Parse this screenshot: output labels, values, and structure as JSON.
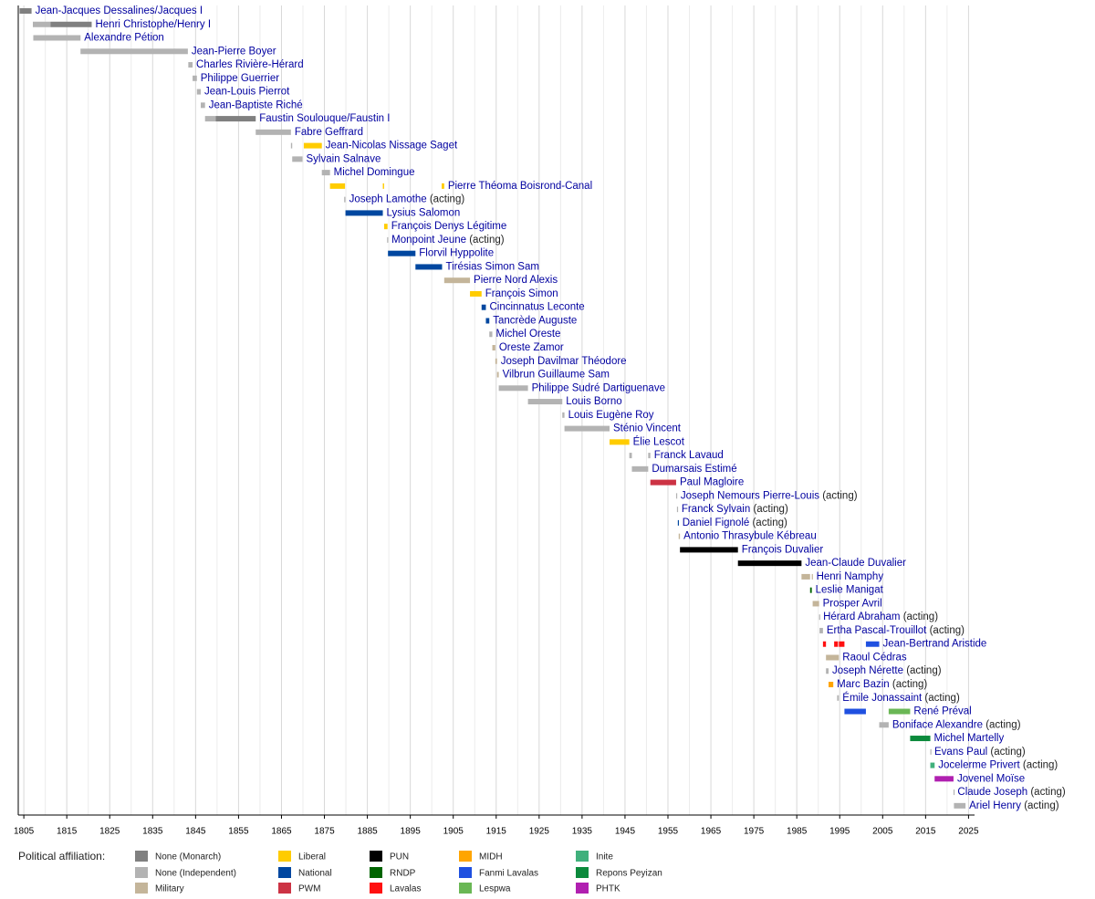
{
  "chart_data": {
    "type": "timeline",
    "xlim": [
      1803.7,
      2026.4
    ],
    "xticks": [
      1805,
      1815,
      1825,
      1835,
      1845,
      1855,
      1865,
      1875,
      1885,
      1895,
      1905,
      1915,
      1925,
      1935,
      1945,
      1955,
      1965,
      1975,
      1985,
      1995,
      2005,
      2015,
      2025
    ],
    "minor_xticks": [
      1810,
      1820,
      1830,
      1840,
      1850,
      1860,
      1870,
      1880,
      1890,
      1900,
      1910,
      1920,
      1930,
      1940,
      1950,
      1960,
      1970,
      1980,
      1990,
      2000,
      2010,
      2020
    ],
    "grid": true,
    "legend_title": "Political affiliation:",
    "parties": [
      {
        "name": "None (Monarch)",
        "color": "#808080"
      },
      {
        "name": "None (Independent)",
        "color": "#b3b3b3"
      },
      {
        "name": "Military",
        "color": "#c4b59a"
      },
      {
        "name": "Liberal",
        "color": "#ffcc00"
      },
      {
        "name": "National",
        "color": "#0047a0"
      },
      {
        "name": "PWM",
        "color": "#cc3344"
      },
      {
        "name": "PUN",
        "color": "#000000"
      },
      {
        "name": "RNDP",
        "color": "#006400"
      },
      {
        "name": "Lavalas",
        "color": "#ff1010"
      },
      {
        "name": "MIDH",
        "color": "#ffa500"
      },
      {
        "name": "Fanmi Lavalas",
        "color": "#1f50e0"
      },
      {
        "name": "Lespwa",
        "color": "#6ab755"
      },
      {
        "name": "Inite",
        "color": "#40b07c"
      },
      {
        "name": "Repons Peyizan",
        "color": "#0c8a3c"
      },
      {
        "name": "PHTK",
        "color": "#b020b0"
      }
    ],
    "rows": [
      {
        "name": "Jean-Jacques Dessalines/Jacques I",
        "segments": [
          [
            1804.0,
            1806.8,
            "None (Monarch)"
          ]
        ]
      },
      {
        "name": "Henri Christophe/Henry I",
        "segments": [
          [
            1807.1,
            1811.2,
            "None (Independent)"
          ],
          [
            1811.2,
            1820.8,
            "None (Monarch)"
          ]
        ]
      },
      {
        "name": "Alexandre Pétion",
        "segments": [
          [
            1807.2,
            1818.2,
            "None (Independent)"
          ]
        ]
      },
      {
        "name": "Jean-Pierre Boyer",
        "segments": [
          [
            1818.2,
            1843.2,
            "None (Independent)"
          ]
        ]
      },
      {
        "name": "Charles Rivière-Hérard",
        "segments": [
          [
            1843.3,
            1844.3,
            "None (Independent)"
          ]
        ]
      },
      {
        "name": "Philippe Guerrier",
        "segments": [
          [
            1844.3,
            1845.3,
            "None (Independent)"
          ]
        ]
      },
      {
        "name": "Jean-Louis Pierrot",
        "segments": [
          [
            1845.3,
            1846.2,
            "None (Independent)"
          ]
        ]
      },
      {
        "name": "Jean-Baptiste Riché",
        "segments": [
          [
            1846.2,
            1847.2,
            "None (Independent)"
          ]
        ]
      },
      {
        "name": "Faustin Soulouque/Faustin I",
        "segments": [
          [
            1847.2,
            1849.7,
            "None (Independent)"
          ],
          [
            1849.7,
            1859.0,
            "None (Monarch)"
          ]
        ]
      },
      {
        "name": "Fabre Geffrard",
        "segments": [
          [
            1859.0,
            1867.2,
            "None (Independent)"
          ]
        ]
      },
      {
        "name": "Jean-Nicolas Nissage Saget",
        "segments": [
          [
            1867.2,
            1867.5,
            "None (Independent)"
          ],
          [
            1870.2,
            1874.4,
            "Liberal"
          ]
        ]
      },
      {
        "name": "Sylvain Salnave",
        "segments": [
          [
            1867.5,
            1869.9,
            "None (Independent)"
          ]
        ]
      },
      {
        "name": "Michel Domingue",
        "segments": [
          [
            1874.4,
            1876.3,
            "None (Independent)"
          ]
        ]
      },
      {
        "name": "Pierre Théoma Boisrond-Canal",
        "segments": [
          [
            1876.3,
            1879.8,
            "Liberal"
          ],
          [
            1888.6,
            1888.9,
            "Liberal"
          ],
          [
            1902.3,
            1902.9,
            "Liberal"
          ]
        ]
      },
      {
        "name": "Joseph Lamothe",
        "note": "(acting)",
        "segments": [
          [
            1879.6,
            1879.9,
            "None (Independent)"
          ]
        ]
      },
      {
        "name": "Lysius Salomon",
        "segments": [
          [
            1879.9,
            1888.6,
            "National"
          ]
        ]
      },
      {
        "name": "François Denys Légitime",
        "segments": [
          [
            1888.9,
            1889.7,
            "Liberal"
          ]
        ]
      },
      {
        "name": "Monpoint Jeune",
        "note": "(acting)",
        "segments": [
          [
            1889.6,
            1889.8,
            "None (Independent)"
          ]
        ]
      },
      {
        "name": "Florvil Hyppolite",
        "segments": [
          [
            1889.8,
            1896.2,
            "National"
          ]
        ]
      },
      {
        "name": "Tirésias Simon Sam",
        "segments": [
          [
            1896.2,
            1902.4,
            "National"
          ]
        ]
      },
      {
        "name": "Pierre Nord Alexis",
        "segments": [
          [
            1902.9,
            1908.9,
            "Military"
          ]
        ]
      },
      {
        "name": "François Simon",
        "segments": [
          [
            1908.9,
            1911.6,
            "Liberal"
          ]
        ]
      },
      {
        "name": "Cincinnatus Leconte",
        "segments": [
          [
            1911.6,
            1912.6,
            "National"
          ]
        ]
      },
      {
        "name": "Tancrède Auguste",
        "segments": [
          [
            1912.6,
            1913.4,
            "National"
          ]
        ]
      },
      {
        "name": "Michel Oreste",
        "segments": [
          [
            1913.4,
            1914.1,
            "None (Independent)"
          ]
        ]
      },
      {
        "name": "Oreste Zamor",
        "segments": [
          [
            1914.1,
            1914.8,
            "Military"
          ]
        ]
      },
      {
        "name": "Joseph Davilmar Théodore",
        "segments": [
          [
            1914.8,
            1915.2,
            "Military"
          ]
        ]
      },
      {
        "name": "Vilbrun Guillaume Sam",
        "segments": [
          [
            1915.2,
            1915.6,
            "Military"
          ]
        ]
      },
      {
        "name": "Philippe Sudré Dartiguenave",
        "segments": [
          [
            1915.6,
            1922.4,
            "None (Independent)"
          ]
        ]
      },
      {
        "name": "Louis Borno",
        "segments": [
          [
            1922.4,
            1930.4,
            "None (Independent)"
          ]
        ]
      },
      {
        "name": "Louis Eugène Roy",
        "segments": [
          [
            1930.4,
            1930.9,
            "None (Independent)"
          ]
        ]
      },
      {
        "name": "Sténio Vincent",
        "segments": [
          [
            1930.9,
            1941.4,
            "None (Independent)"
          ]
        ]
      },
      {
        "name": "Élie Lescot",
        "segments": [
          [
            1941.4,
            1946.0,
            "Liberal"
          ]
        ]
      },
      {
        "name": "Franck Lavaud",
        "segments": [
          [
            1946.0,
            1946.6,
            "None (Independent)"
          ],
          [
            1950.4,
            1950.9,
            "None (Independent)"
          ]
        ]
      },
      {
        "name": "Dumarsais Estimé",
        "segments": [
          [
            1946.6,
            1950.4,
            "None (Independent)"
          ]
        ]
      },
      {
        "name": "Paul Magloire",
        "segments": [
          [
            1950.9,
            1956.9,
            "PWM"
          ]
        ]
      },
      {
        "name": "Joseph Nemours Pierre-Louis",
        "note": "(acting)",
        "segments": [
          [
            1956.9,
            1957.1,
            "None (Independent)"
          ]
        ]
      },
      {
        "name": "Franck Sylvain",
        "note": "(acting)",
        "segments": [
          [
            1957.1,
            1957.3,
            "None (Independent)"
          ]
        ]
      },
      {
        "name": "Daniel Fignolé",
        "note": "(acting)",
        "segments": [
          [
            1957.3,
            1957.5,
            "National"
          ]
        ]
      },
      {
        "name": "Antonio Thrasybule Kébreau",
        "segments": [
          [
            1957.5,
            1957.8,
            "Military"
          ]
        ]
      },
      {
        "name": "François Duvalier",
        "segments": [
          [
            1957.8,
            1971.3,
            "PUN"
          ]
        ]
      },
      {
        "name": "Jean-Claude Duvalier",
        "segments": [
          [
            1971.3,
            1986.1,
            "PUN"
          ]
        ]
      },
      {
        "name": "Henri Namphy",
        "segments": [
          [
            1986.1,
            1988.1,
            "Military"
          ],
          [
            1988.5,
            1988.7,
            "Military"
          ]
        ]
      },
      {
        "name": "Leslie Manigat",
        "segments": [
          [
            1988.1,
            1988.5,
            "RNDP"
          ]
        ]
      },
      {
        "name": "Prosper Avril",
        "segments": [
          [
            1988.7,
            1990.2,
            "Military"
          ]
        ]
      },
      {
        "name": "Hérard Abraham",
        "note": "(acting)",
        "segments": [
          [
            1990.2,
            1990.3,
            "None (Independent)"
          ]
        ]
      },
      {
        "name": "Ertha Pascal-Trouillot",
        "note": "(acting)",
        "segments": [
          [
            1990.3,
            1991.1,
            "None (Independent)"
          ]
        ]
      },
      {
        "name": "Jean-Bertrand Aristide",
        "segments": [
          [
            1991.1,
            1991.8,
            "Lavalas"
          ],
          [
            1993.7,
            1994.6,
            "Lavalas"
          ],
          [
            1994.8,
            1996.1,
            "Lavalas"
          ],
          [
            2001.1,
            2004.2,
            "Fanmi Lavalas"
          ]
        ]
      },
      {
        "name": "Raoul Cédras",
        "segments": [
          [
            1991.8,
            1994.8,
            "Military"
          ]
        ]
      },
      {
        "name": "Joseph Nérette",
        "note": "(acting)",
        "segments": [
          [
            1991.8,
            1992.4,
            "None (Independent)"
          ]
        ]
      },
      {
        "name": "Marc Bazin",
        "note": "(acting)",
        "segments": [
          [
            1992.4,
            1993.5,
            "MIDH"
          ]
        ]
      },
      {
        "name": "Émile Jonassaint",
        "note": "(acting)",
        "segments": [
          [
            1994.4,
            1994.8,
            "None (Independent)"
          ]
        ]
      },
      {
        "name": "René Préval",
        "segments": [
          [
            1996.1,
            2001.1,
            "Fanmi Lavalas"
          ],
          [
            2006.4,
            2011.4,
            "Lespwa"
          ]
        ]
      },
      {
        "name": "Boniface Alexandre",
        "note": "(acting)",
        "segments": [
          [
            2004.2,
            2006.4,
            "None (Independent)"
          ]
        ]
      },
      {
        "name": "Michel Martelly",
        "segments": [
          [
            2011.4,
            2016.1,
            "Repons Peyizan"
          ]
        ]
      },
      {
        "name": "Evans Paul",
        "note": "(acting)",
        "segments": [
          [
            2016.1,
            2016.2,
            "None (Independent)"
          ]
        ]
      },
      {
        "name": "Jocelerme Privert",
        "note": "(acting)",
        "segments": [
          [
            2016.1,
            2017.1,
            "Inite"
          ]
        ]
      },
      {
        "name": "Jovenel Moïse",
        "segments": [
          [
            2017.1,
            2021.5,
            "PHTK"
          ]
        ]
      },
      {
        "name": "Claude Joseph",
        "note": "(acting)",
        "segments": [
          [
            2021.5,
            2021.6,
            "None (Independent)"
          ]
        ]
      },
      {
        "name": "Ariel Henry",
        "note": "(acting)",
        "segments": [
          [
            2021.6,
            2024.3,
            "None (Independent)"
          ]
        ]
      }
    ]
  }
}
